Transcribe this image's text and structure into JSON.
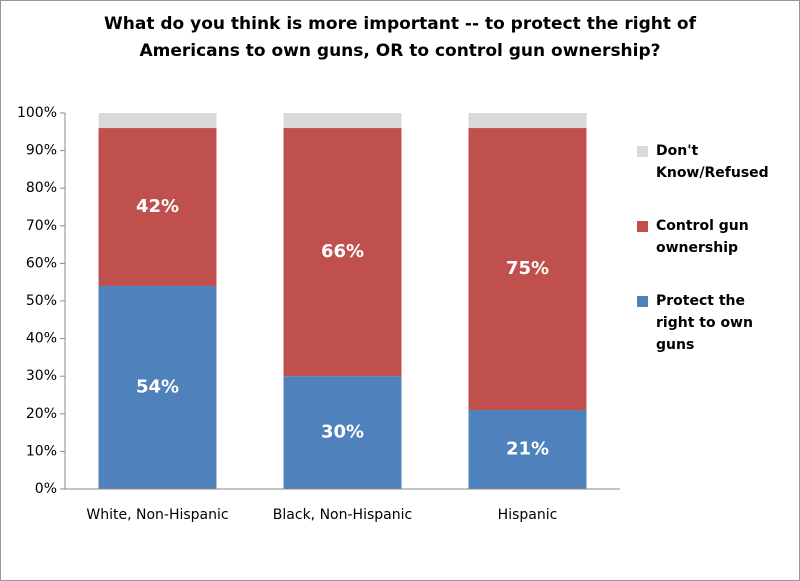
{
  "chart_data": {
    "type": "stacked-bar",
    "title": [
      "What do you think is more important -- to protect the right of",
      "Americans to own guns, OR to control gun ownership?"
    ],
    "categories": [
      "White, Non-Hispanic",
      "Black, Non-Hispanic",
      "Hispanic"
    ],
    "series": [
      {
        "name": "Protect the right to own guns",
        "color": "#4f81bd",
        "values": [
          54,
          30,
          21
        ],
        "value_labels": [
          "54%",
          "30%",
          "21%"
        ]
      },
      {
        "name": "Control gun ownership",
        "color": "#c0504d",
        "values": [
          42,
          66,
          75
        ],
        "value_labels": [
          "42%",
          "66%",
          "75%"
        ]
      },
      {
        "name": "Don't Know/Refused",
        "color": "#d9d9d9",
        "values": [
          4,
          4,
          4
        ]
      }
    ],
    "ylim": [
      0,
      100
    ],
    "yticks": [
      {
        "value": 0,
        "label": "0%"
      },
      {
        "value": 10,
        "label": "10%"
      },
      {
        "value": 20,
        "label": "20%"
      },
      {
        "value": 30,
        "label": "30%"
      },
      {
        "value": 40,
        "label": "40%"
      },
      {
        "value": 50,
        "label": "50%"
      },
      {
        "value": 60,
        "label": "60%"
      },
      {
        "value": 70,
        "label": "70%"
      },
      {
        "value": 80,
        "label": "80%"
      },
      {
        "value": 90,
        "label": "90%"
      },
      {
        "value": 100,
        "label": "100%"
      }
    ],
    "legend": "right"
  }
}
